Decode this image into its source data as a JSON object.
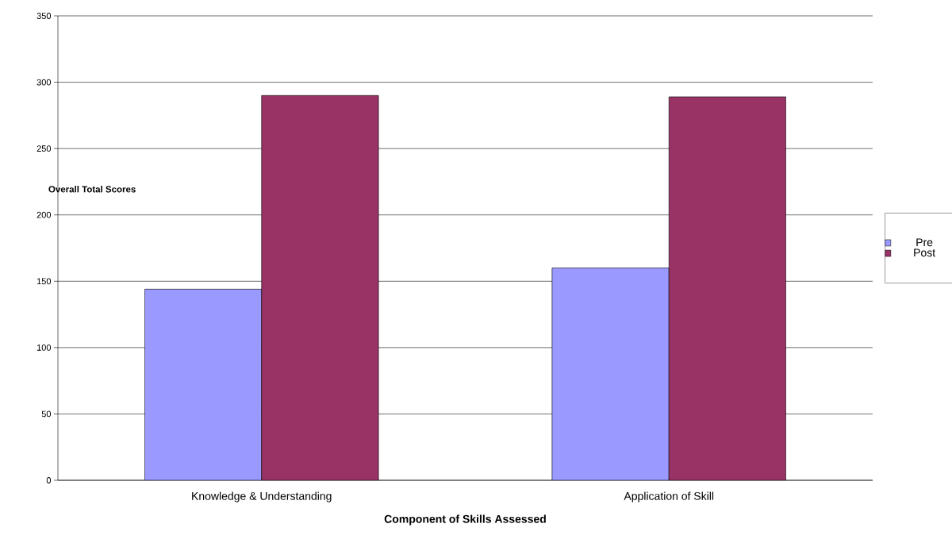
{
  "chart_data": {
    "type": "bar",
    "xlabel": "Component of Skills Assessed",
    "ylabel": "Overall Total Scores",
    "categories": [
      "Knowledge & Understanding",
      "Application of Skill"
    ],
    "series": [
      {
        "name": "Pre",
        "color": "#9999ff",
        "values": [
          144,
          160
        ]
      },
      {
        "name": "Post",
        "color": "#993366",
        "values": [
          290,
          289
        ]
      }
    ],
    "ylim": [
      0,
      350
    ],
    "yticks": [
      0,
      50,
      100,
      150,
      200,
      250,
      300,
      350
    ],
    "grid": "y",
    "legend": "right"
  }
}
